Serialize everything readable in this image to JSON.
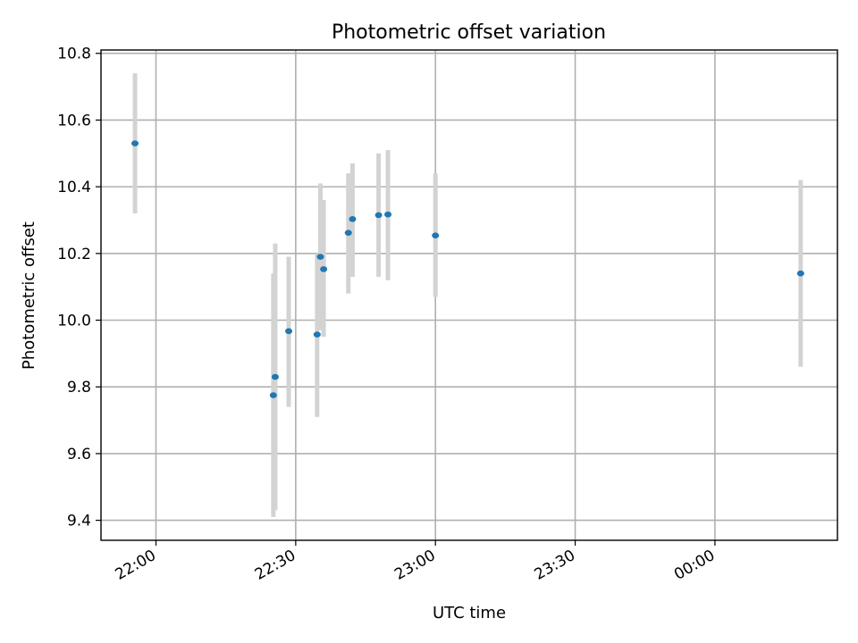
{
  "chart_data": {
    "type": "scatter",
    "title": "Photometric offset variation",
    "xlabel": "UTC time",
    "ylabel": "Photometric offset",
    "x_ticks": [
      "22:00",
      "22:30",
      "23:00",
      "23:30",
      "00:00"
    ],
    "x_tick_minutes": [
      1320,
      1350,
      1380,
      1410,
      1440
    ],
    "xlim_minutes": [
      1308.2,
      1466.3
    ],
    "y_ticks": [
      "9.4",
      "9.6",
      "9.8",
      "10.0",
      "10.2",
      "10.4",
      "10.6",
      "10.8"
    ],
    "y_tick_values": [
      9.4,
      9.6,
      9.8,
      10.0,
      10.2,
      10.4,
      10.6,
      10.8
    ],
    "ylim": [
      9.34,
      10.81
    ],
    "grid": true,
    "colors": {
      "point": "#1f77b4",
      "error_bar": "#d3d3d3"
    },
    "points": [
      {
        "time": "21:55",
        "minute": 1315.5,
        "y": 10.53,
        "err_low": 10.32,
        "err_high": 10.74
      },
      {
        "time": "22:25",
        "minute": 1345.2,
        "y": 9.775,
        "err_low": 9.41,
        "err_high": 10.14
      },
      {
        "time": "22:25",
        "minute": 1345.6,
        "y": 9.83,
        "err_low": 9.43,
        "err_high": 10.23
      },
      {
        "time": "22:28",
        "minute": 1348.5,
        "y": 9.967,
        "err_low": 9.74,
        "err_high": 10.19
      },
      {
        "time": "22:35",
        "minute": 1354.6,
        "y": 9.957,
        "err_low": 9.71,
        "err_high": 10.2
      },
      {
        "time": "22:35",
        "minute": 1355.3,
        "y": 10.19,
        "err_low": 9.97,
        "err_high": 10.41
      },
      {
        "time": "22:36",
        "minute": 1356.0,
        "y": 10.153,
        "err_low": 9.95,
        "err_high": 10.36
      },
      {
        "time": "22:41",
        "minute": 1361.3,
        "y": 10.262,
        "err_low": 10.08,
        "err_high": 10.44
      },
      {
        "time": "22:42",
        "minute": 1362.2,
        "y": 10.303,
        "err_low": 10.13,
        "err_high": 10.47
      },
      {
        "time": "22:48",
        "minute": 1367.8,
        "y": 10.315,
        "err_low": 10.13,
        "err_high": 10.5
      },
      {
        "time": "22:49",
        "minute": 1369.8,
        "y": 10.317,
        "err_low": 10.12,
        "err_high": 10.51
      },
      {
        "time": "23:00",
        "minute": 1380.0,
        "y": 10.254,
        "err_low": 10.07,
        "err_high": 10.44
      },
      {
        "time": "00:18",
        "minute": 1458.4,
        "y": 10.14,
        "err_low": 9.86,
        "err_high": 10.42
      }
    ]
  }
}
